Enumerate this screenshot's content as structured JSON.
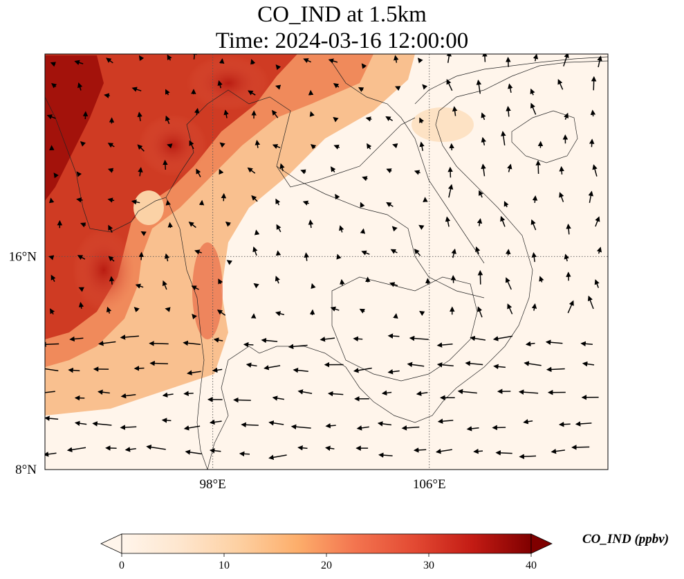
{
  "title": {
    "line1": "CO_IND at 1.5km",
    "line2": "Time: 2024-03-16 12:00:00"
  },
  "map": {
    "lon_range": [
      91.8,
      112.6
    ],
    "lat_range": [
      8,
      23.6
    ],
    "lon_ticks": [
      {
        "value": 98,
        "label": "98°E"
      },
      {
        "value": 106,
        "label": "106°E"
      }
    ],
    "lat_ticks": [
      {
        "value": 16,
        "label": "16°N"
      },
      {
        "value": 8,
        "label": "8°N"
      }
    ],
    "gridlines": "dotted"
  },
  "colorbar": {
    "title": "CO_IND (ppbv)",
    "range": [
      0,
      40
    ],
    "extend": "both",
    "ticks": [
      {
        "value": 0,
        "label": "0"
      },
      {
        "value": 10,
        "label": "10"
      },
      {
        "value": 20,
        "label": "20"
      },
      {
        "value": 30,
        "label": "30"
      },
      {
        "value": 40,
        "label": "40"
      }
    ],
    "colors": [
      "#fff5eb",
      "#fee6ce",
      "#fdd0a2",
      "#fdae6b",
      "#f3744f",
      "#e34a33",
      "#c31b14",
      "#7f0000"
    ]
  }
}
